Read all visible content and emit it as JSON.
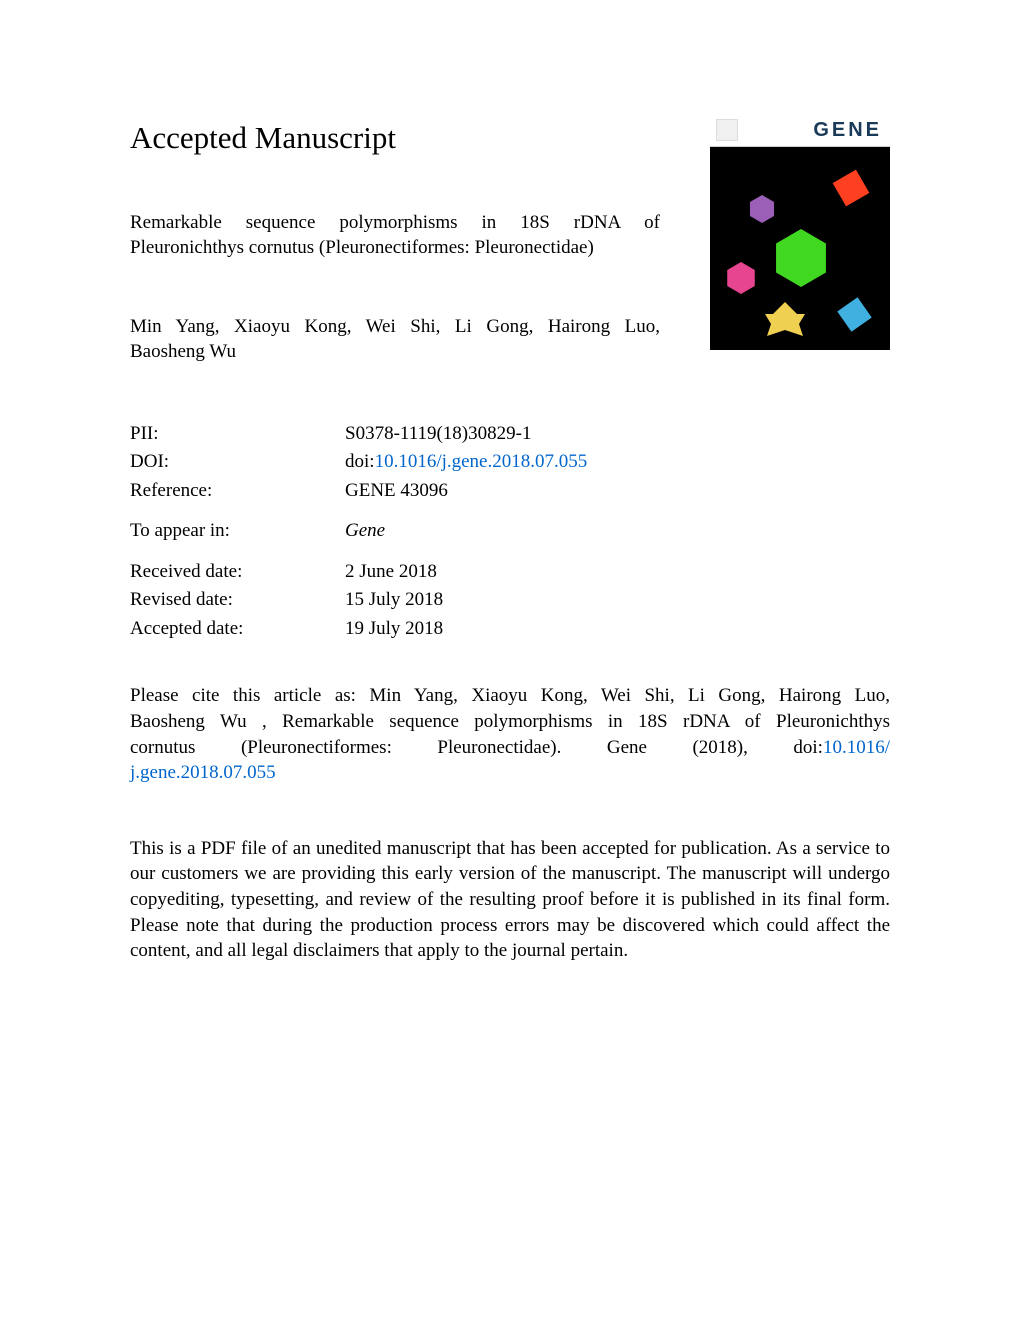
{
  "page": {
    "heading": "Accepted Manuscript",
    "cover": {
      "journal_label": "GENE",
      "background_color": "#000000",
      "shapes": [
        {
          "name": "red-diamond",
          "color": "#ff4020"
        },
        {
          "name": "purple-hexagon",
          "color": "#9b5fb8"
        },
        {
          "name": "pink-hexagon",
          "color": "#e84590"
        },
        {
          "name": "green-hexagon",
          "color": "#40d820"
        },
        {
          "name": "yellow-star",
          "color": "#f0d050"
        },
        {
          "name": "teal-diamond",
          "color": "#40b0e0"
        }
      ]
    },
    "article": {
      "title_line1": "Remarkable sequence polymorphisms in 18S rDNA of",
      "title_line2": "Pleuronichthys cornutus (Pleuronectiformes: Pleuronectidae)",
      "authors_line1": "Min Yang, Xiaoyu Kong, Wei Shi, Li Gong, Hairong Luo,",
      "authors_line2": "Baosheng Wu"
    },
    "metadata": {
      "pii": {
        "label": "PII:",
        "value": "S0378-1119(18)30829-1"
      },
      "doi": {
        "label": "DOI:",
        "prefix": "doi:",
        "link": "10.1016/j.gene.2018.07.055"
      },
      "reference": {
        "label": "Reference:",
        "value": "GENE 43096"
      },
      "to_appear": {
        "label": "To appear in:",
        "value": "Gene"
      },
      "received": {
        "label": "Received date:",
        "value": "2 June 2018"
      },
      "revised": {
        "label": "Revised date:",
        "value": "15 July 2018"
      },
      "accepted": {
        "label": "Accepted date:",
        "value": "19 July 2018"
      }
    },
    "citation": {
      "line1": "Please cite this article as: Min Yang, Xiaoyu Kong, Wei Shi, Li Gong, Hairong Luo,",
      "line2": "Baosheng Wu , Remarkable sequence polymorphisms in 18S rDNA of Pleuronichthys",
      "line3_part1": "cornutus (Pleuronectiformes: Pleuronectidae). Gene (2018), doi:",
      "link1": "10.1016/",
      "link2": "j.gene.2018.07.055"
    },
    "disclaimer": "This is a PDF file of an unedited manuscript that has been accepted for publication. As a service to our customers we are providing this early version of the manuscript. The manuscript will undergo copyediting, typesetting, and review of the resulting proof before it is published in its final form. Please note that during the production process errors may be discovered which could affect the content, and all legal disclaimers that apply to the journal pertain.",
    "styling": {
      "page_background": "#ffffff",
      "text_color": "#000000",
      "link_color": "#0066cc",
      "heading_fontsize": 31,
      "body_fontsize": 19,
      "font_family": "Times New Roman"
    }
  }
}
